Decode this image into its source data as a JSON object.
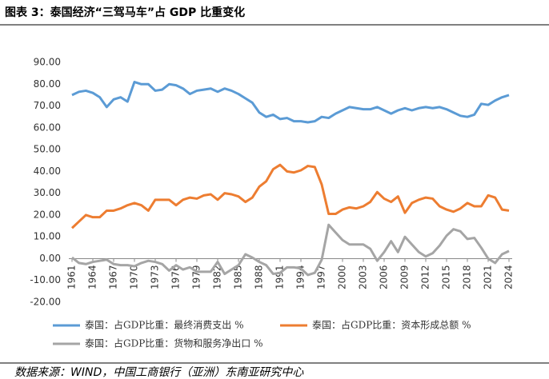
{
  "chart_data": {
    "type": "line",
    "title": "图表 3：泰国经济“三驾马车”占 GDP 比重变化",
    "source": "数据来源：WIND，中国工商银行（亚洲）东南亚研究中心",
    "x": [
      1961,
      1962,
      1963,
      1964,
      1965,
      1966,
      1967,
      1968,
      1969,
      1970,
      1971,
      1972,
      1973,
      1974,
      1975,
      1976,
      1977,
      1978,
      1979,
      1980,
      1981,
      1982,
      1983,
      1984,
      1985,
      1986,
      1987,
      1988,
      1989,
      1990,
      1991,
      1992,
      1993,
      1994,
      1995,
      1996,
      1997,
      1998,
      1999,
      2000,
      2001,
      2002,
      2003,
      2004,
      2005,
      2006,
      2007,
      2008,
      2009,
      2010,
      2011,
      2012,
      2013,
      2014,
      2015,
      2016,
      2017,
      2018,
      2019,
      2020,
      2021,
      2022,
      2023,
      2024
    ],
    "xlim": [
      1961,
      2024
    ],
    "xticks": [
      1961,
      1964,
      1967,
      1970,
      1973,
      1976,
      1979,
      1982,
      1985,
      1988,
      1991,
      1994,
      1997,
      2000,
      2003,
      2006,
      2009,
      2012,
      2015,
      2018,
      2021,
      2024
    ],
    "ylim": [
      -20,
      90
    ],
    "yticks": [
      {
        "value": -20,
        "label": "-20.00"
      },
      {
        "value": -10,
        "label": "-10.00"
      },
      {
        "value": 0,
        "label": "0.00"
      },
      {
        "value": 10,
        "label": "10.00"
      },
      {
        "value": 20,
        "label": "20.00"
      },
      {
        "value": 30,
        "label": "30.00"
      },
      {
        "value": 40,
        "label": "40.00"
      },
      {
        "value": 50,
        "label": "50.00"
      },
      {
        "value": 60,
        "label": "60.00"
      },
      {
        "value": 70,
        "label": "70.00"
      },
      {
        "value": 80,
        "label": "80.00"
      },
      {
        "value": 90,
        "label": "90.00"
      }
    ],
    "grid": false,
    "series": [
      {
        "name": "泰国：占GDP比重：最终消费支出 %",
        "color": "#5B9BD5",
        "values": [
          75,
          76.5,
          77,
          76,
          74,
          69.5,
          73,
          74,
          72,
          81,
          80,
          80,
          77,
          77.5,
          80,
          79.5,
          78,
          75.5,
          77,
          77.5,
          78,
          76.5,
          78,
          77,
          75.5,
          73.5,
          71.5,
          67,
          65,
          66,
          64,
          64.5,
          63,
          63,
          62.5,
          63,
          65,
          64.5,
          66.5,
          68,
          69.5,
          69,
          68.5,
          68.5,
          69.5,
          68,
          66.5,
          68,
          69,
          68,
          69,
          69.5,
          69,
          69.5,
          68.5,
          67,
          65.5,
          65,
          66,
          71,
          70.5,
          72.5,
          74,
          75
        ]
      },
      {
        "name": "泰国：占GDP比重：资本形成总额 %",
        "color": "#ED7D31",
        "values": [
          14,
          17,
          20,
          19,
          19,
          22,
          22,
          23,
          24.5,
          25.5,
          24.5,
          22,
          27,
          27,
          27,
          24.5,
          27,
          28,
          27.5,
          29,
          29.5,
          27,
          30,
          29.5,
          28.5,
          26,
          28,
          33,
          35.5,
          41,
          43,
          40,
          39.5,
          40.5,
          42.5,
          42,
          34,
          20.5,
          20.5,
          22.5,
          23.5,
          23,
          24,
          26,
          30.5,
          27.5,
          26,
          28.5,
          21,
          25.5,
          27,
          28,
          27.5,
          24,
          22.5,
          21.5,
          23,
          25.5,
          24,
          24,
          29,
          28,
          22.5,
          22
        ]
      },
      {
        "name": "泰国：占GDP比重：货物和服务净出口 %",
        "color": "#A5A5A5",
        "values": [
          0.5,
          -2,
          -2.5,
          -1.5,
          -1,
          -0.5,
          -2.5,
          -3,
          -3,
          -3.5,
          -2,
          -1,
          -1.5,
          -2.5,
          -5.5,
          -3,
          -5,
          -4,
          -6,
          -6,
          -6,
          -1.5,
          -7,
          -5,
          -3,
          2,
          0.5,
          -1.5,
          -3,
          -7,
          -6.5,
          -4,
          -4,
          -4.5,
          -7.5,
          -6.5,
          -0.5,
          15.5,
          12,
          8.5,
          6.5,
          6.5,
          6.5,
          4.5,
          -1,
          3,
          8,
          3,
          10,
          6.5,
          3,
          1,
          2.5,
          6,
          10.5,
          13.5,
          12.5,
          9,
          9.5,
          5,
          0,
          -2,
          2,
          3.5
        ]
      }
    ]
  }
}
